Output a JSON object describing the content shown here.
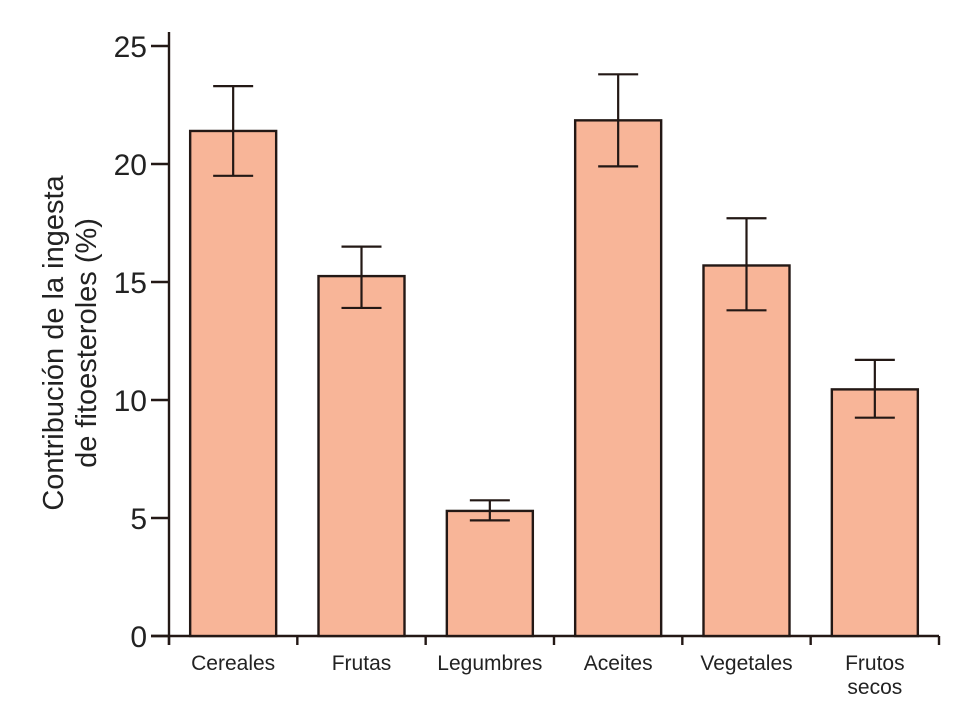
{
  "chart_data": {
    "type": "bar",
    "title": "",
    "xlabel": "",
    "ylabel_lines": [
      "Contribución de la ingesta",
      "de fitoesteroles (%)"
    ],
    "ylabel": "Contribución de la ingesta de fitoesteroles (%)",
    "ylim": [
      0,
      25
    ],
    "yticks": [
      0,
      5,
      10,
      15,
      20,
      25
    ],
    "ytick_labels": [
      "0",
      "5",
      "10",
      "15",
      "20",
      "25"
    ],
    "grid": false,
    "legend": null,
    "categories": [
      "Cereales",
      "Frutas",
      "Legumbres",
      "Aceites",
      "Vegetales",
      "Frutos secos"
    ],
    "category_label_lines": [
      [
        "Cereales"
      ],
      [
        "Frutas"
      ],
      [
        "Legumbres"
      ],
      [
        "Aceites"
      ],
      [
        "Vegetales"
      ],
      [
        "Frutos",
        "secos"
      ]
    ],
    "values": [
      21.4,
      15.25,
      5.3,
      21.85,
      15.7,
      10.45
    ],
    "error_upper": [
      23.3,
      16.5,
      5.75,
      23.8,
      17.7,
      11.7
    ],
    "error_lower": [
      19.5,
      13.9,
      4.9,
      19.9,
      13.8,
      9.25
    ],
    "bar_color": "#f8b598",
    "edge_color": "#231815"
  }
}
